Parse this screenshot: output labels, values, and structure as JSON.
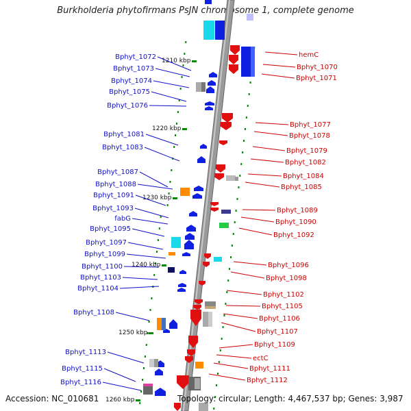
{
  "title": "Burkholderia phytofirmans PsJN chromosome 1, complete genome",
  "footer": {
    "accession": "Accession: NC_010681",
    "topology": "Topology: circular; Length: 4,467,537 bp; Genes: 3,987"
  },
  "colors": {
    "forward": "#1010e0",
    "reverse": "#e01010",
    "label_left": "#1010c8",
    "label_right": "#cc0000",
    "backbone": "#888888",
    "tick": "#008800"
  },
  "scale_labels": [
    "1210 kbp",
    "1220 kbp",
    "1230 kbp",
    "1240 kbp",
    "1250 kbp",
    "1260 kbp"
  ],
  "left_labels": [
    "Bphyt_1072",
    "Bphyt_1073",
    "Bphyt_1074",
    "Bphyt_1075",
    "Bphyt_1076",
    "Bphyt_1081",
    "Bphyt_1083",
    "Bphyt_1087",
    "Bphyt_1088",
    "Bphyt_1091",
    "Bphyt_1093",
    "fabG",
    "Bphyt_1095",
    "Bphyt_1097",
    "Bphyt_1099",
    "Bphyt_1100",
    "Bphyt_1103",
    "Bphyt_1104",
    "Bphyt_1108",
    "Bphyt_1113",
    "Bphyt_1115",
    "Bphyt_1116"
  ],
  "right_labels": [
    "hemC",
    "Bphyt_1070",
    "Bphyt_1071",
    "Bphyt_1077",
    "Bphyt_1078",
    "Bphyt_1079",
    "Bphyt_1082",
    "Bphyt_1084",
    "Bphyt_1085",
    "Bphyt_1089",
    "Bphyt_1090",
    "Bphyt_1092",
    "Bphyt_1096",
    "Bphyt_1098",
    "Bphyt_1102",
    "Bphyt_1105",
    "Bphyt_1106",
    "Bphyt_1107",
    "Bphyt_1109",
    "ectC",
    "Bphyt_1111",
    "Bphyt_1112"
  ]
}
